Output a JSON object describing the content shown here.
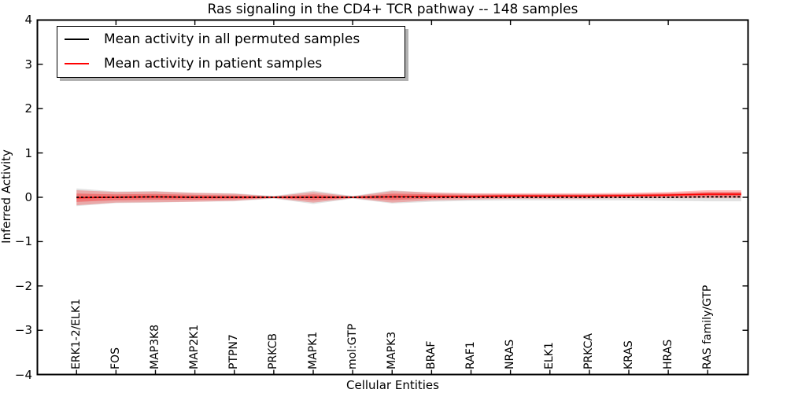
{
  "title": "Ras signaling in the CD4+ TCR pathway -- 148 samples",
  "legend": {
    "items": [
      {
        "label": "Mean activity in all permuted samples",
        "color": "#000000"
      },
      {
        "label": "Mean activity in patient samples",
        "color": "#ff0000"
      }
    ]
  },
  "axes": {
    "xlabel": "Cellular Entities",
    "ylabel": "Inferred Activity",
    "ytick_labels": [
      "4",
      "3",
      "2",
      "1",
      "0",
      "−1",
      "−2",
      "−3",
      "−4"
    ]
  },
  "chart_data": {
    "type": "line",
    "title": "Ras signaling in the CD4+ TCR pathway -- 148 samples",
    "xlabel": "Cellular Entities",
    "ylabel": "Inferred Activity",
    "ylim": [
      -4,
      4
    ],
    "yticks": [
      4,
      3,
      2,
      1,
      0,
      -1,
      -2,
      -3,
      -4
    ],
    "grid": false,
    "legend_position": "upper left",
    "categories": [
      "ERK1-2/ELK1",
      "FOS",
      "MAP3K8",
      "MAP2K1",
      "PTPN7",
      "PRKCB",
      "MAPK1",
      "mol:GTP",
      "MAPK3",
      "BRAF",
      "RAF1",
      "NRAS",
      "ELK1",
      "PRKCA",
      "KRAS",
      "HRAS",
      "RAS family/GTP"
    ],
    "series": [
      {
        "name": "Mean activity in all permuted samples",
        "color": "#000000",
        "line_style": "dashed",
        "values": [
          0.0,
          0.0,
          0.01,
          0.0,
          0.0,
          0.0,
          0.0,
          0.0,
          0.01,
          0.0,
          0.0,
          0.0,
          0.0,
          0.0,
          0.0,
          0.0,
          0.01
        ],
        "band_halfwidths": [
          0.2,
          0.13,
          0.13,
          0.1,
          0.09,
          0.03,
          0.15,
          0.03,
          0.15,
          0.1,
          0.08,
          0.07,
          0.07,
          0.07,
          0.07,
          0.08,
          0.1
        ],
        "band_color": "#8a8a8a"
      },
      {
        "name": "Mean activity in patient samples",
        "color": "#ff0000",
        "line_style": "solid",
        "values": [
          -0.01,
          0.0,
          0.01,
          0.0,
          0.0,
          0.0,
          0.0,
          0.0,
          0.01,
          0.02,
          0.02,
          0.03,
          0.03,
          0.03,
          0.04,
          0.05,
          0.07
        ],
        "band_halfwidths": [
          0.17,
          0.12,
          0.12,
          0.1,
          0.08,
          0.02,
          0.12,
          0.02,
          0.13,
          0.09,
          0.07,
          0.06,
          0.06,
          0.06,
          0.06,
          0.07,
          0.09
        ],
        "band_color": "#ff0000"
      }
    ]
  }
}
